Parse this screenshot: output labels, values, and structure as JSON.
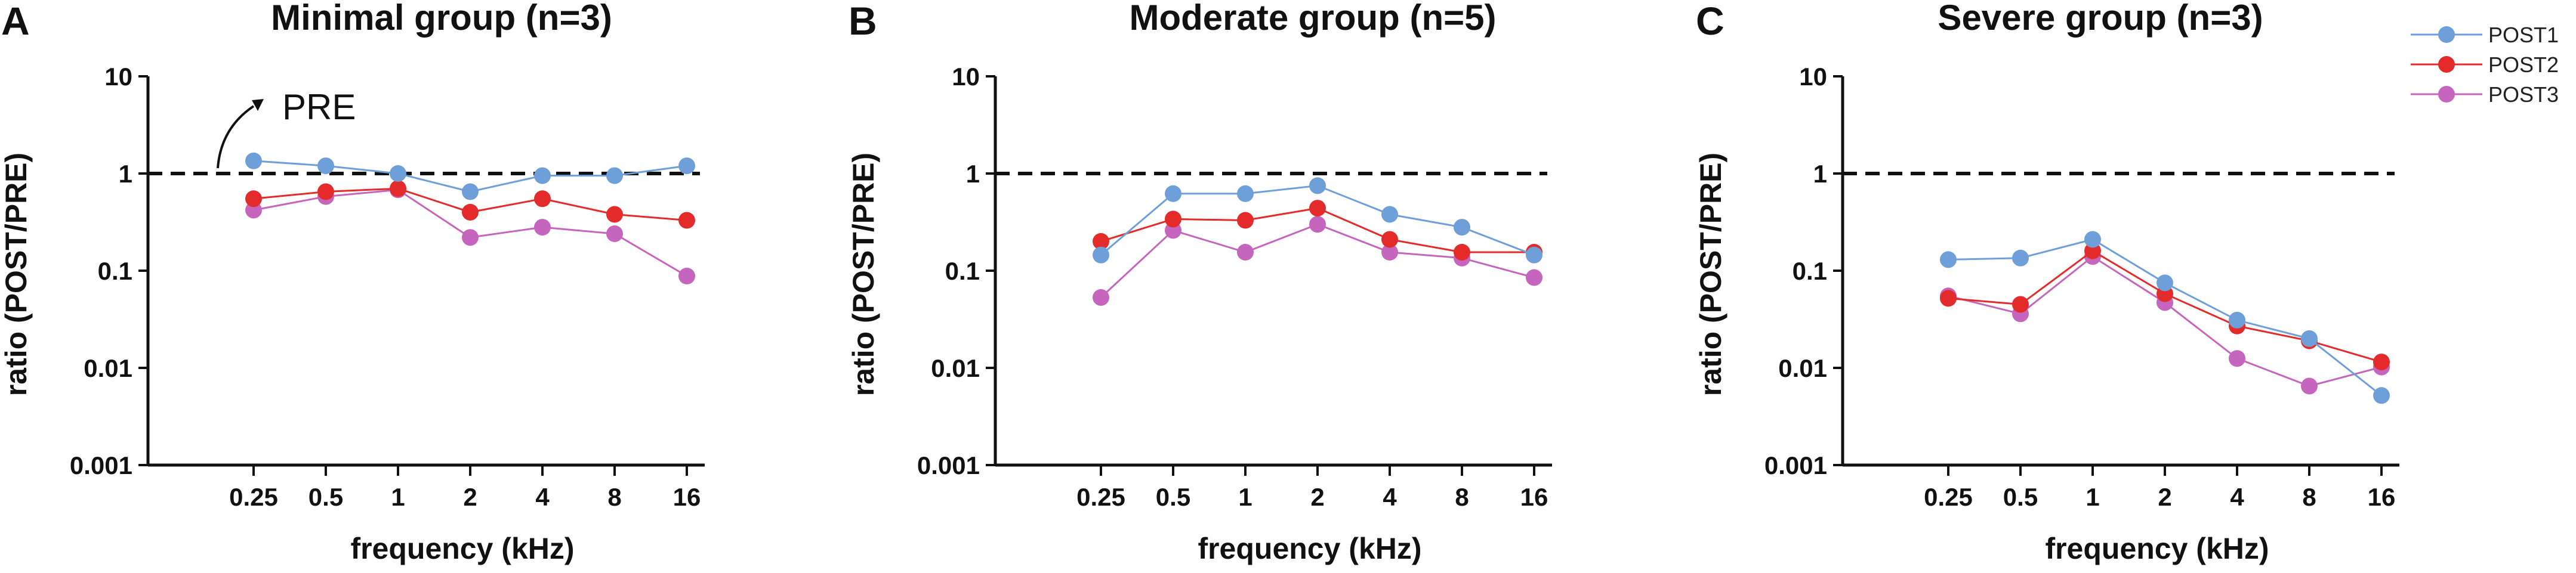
{
  "chart_data": [
    {
      "type": "line",
      "panel": "A",
      "title": "Minimal group (n=3)",
      "xlabel": "frequency (kHz)",
      "ylabel": "ratio (POST/PRE)",
      "yscale": "log",
      "ylim": [
        0.001,
        10
      ],
      "ytick_labels": [
        "10",
        "1",
        "0.1",
        "0.01",
        "0.001"
      ],
      "categories": [
        "0.25",
        "0.5",
        "1",
        "2",
        "4",
        "8",
        "16"
      ],
      "reference_line": 1,
      "annotation": "PRE",
      "series": [
        {
          "name": "POST1",
          "values": [
            1.35,
            1.2,
            1.0,
            0.65,
            0.95,
            0.95,
            1.2
          ]
        },
        {
          "name": "POST2",
          "values": [
            0.55,
            0.65,
            0.7,
            0.4,
            0.55,
            0.38,
            0.33
          ]
        },
        {
          "name": "POST3",
          "values": [
            0.42,
            0.58,
            0.68,
            0.22,
            0.28,
            0.24,
            0.088
          ]
        }
      ]
    },
    {
      "type": "line",
      "panel": "B",
      "title": "Moderate group (n=5)",
      "xlabel": "frequency (kHz)",
      "ylabel": "ratio (POST/PRE)",
      "yscale": "log",
      "ylim": [
        0.001,
        10
      ],
      "ytick_labels": [
        "10",
        "1",
        "0.1",
        "0.01",
        "0.001"
      ],
      "categories": [
        "0.25",
        "0.5",
        "1",
        "2",
        "4",
        "8",
        "16"
      ],
      "reference_line": 1,
      "series": [
        {
          "name": "POST1",
          "values": [
            0.145,
            0.62,
            0.62,
            0.75,
            0.38,
            0.28,
            0.145
          ]
        },
        {
          "name": "POST2",
          "values": [
            0.2,
            0.34,
            0.33,
            0.44,
            0.21,
            0.155,
            0.155
          ]
        },
        {
          "name": "POST3",
          "values": [
            0.053,
            0.26,
            0.155,
            0.3,
            0.155,
            0.135,
            0.085
          ]
        }
      ]
    },
    {
      "type": "line",
      "panel": "C",
      "title": "Severe group (n=3)",
      "xlabel": "frequency (kHz)",
      "ylabel": "ratio (POST/PRE)",
      "yscale": "log",
      "ylim": [
        0.001,
        10
      ],
      "ytick_labels": [
        "10",
        "1",
        "0.1",
        "0.01",
        "0.001"
      ],
      "categories": [
        "0.25",
        "0.5",
        "1",
        "2",
        "4",
        "8",
        "16"
      ],
      "reference_line": 1,
      "series": [
        {
          "name": "POST1",
          "values": [
            0.13,
            0.135,
            0.21,
            0.075,
            0.031,
            0.02,
            0.0052
          ]
        },
        {
          "name": "POST2",
          "values": [
            0.052,
            0.045,
            0.16,
            0.058,
            0.027,
            0.019,
            0.0115
          ]
        },
        {
          "name": "POST3",
          "values": [
            0.055,
            0.036,
            0.14,
            0.047,
            0.0125,
            0.0065,
            0.0102
          ]
        }
      ]
    }
  ],
  "legend": {
    "placement": "top-right",
    "entries": [
      "POST1",
      "POST2",
      "POST3"
    ]
  },
  "colors": {
    "POST1": "#6f9fd8",
    "POST2": "#e32b2b",
    "POST3": "#c665bd",
    "axis": "#111111",
    "reference_line": "#111111"
  }
}
